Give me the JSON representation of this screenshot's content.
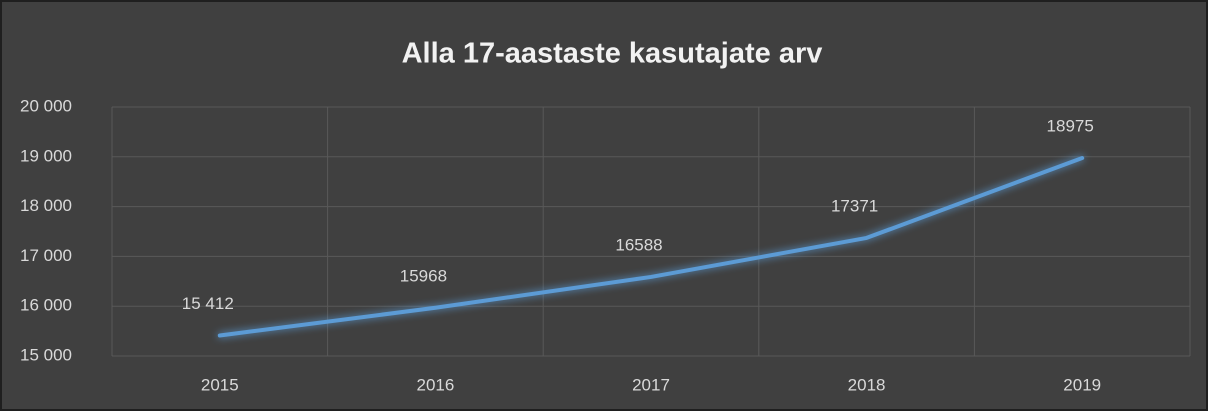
{
  "chart_data": {
    "type": "line",
    "title": "Alla 17-aastaste kasutajate arv",
    "categories": [
      "2015",
      "2016",
      "2017",
      "2018",
      "2019"
    ],
    "values": [
      15412,
      15968,
      16588,
      17371,
      18975
    ],
    "value_labels": [
      "15 412",
      "15968",
      "16588",
      "17371",
      "18975"
    ],
    "color": "#5b9bd5",
    "ylim": [
      15000,
      20000
    ],
    "yticks": [
      {
        "value": 15000,
        "label": "15 000"
      },
      {
        "value": 16000,
        "label": "16 000"
      },
      {
        "value": 17000,
        "label": "17 000"
      },
      {
        "value": 18000,
        "label": "18 000"
      },
      {
        "value": 19000,
        "label": "19 000"
      },
      {
        "value": 20000,
        "label": "20 000"
      }
    ],
    "grid": true
  }
}
